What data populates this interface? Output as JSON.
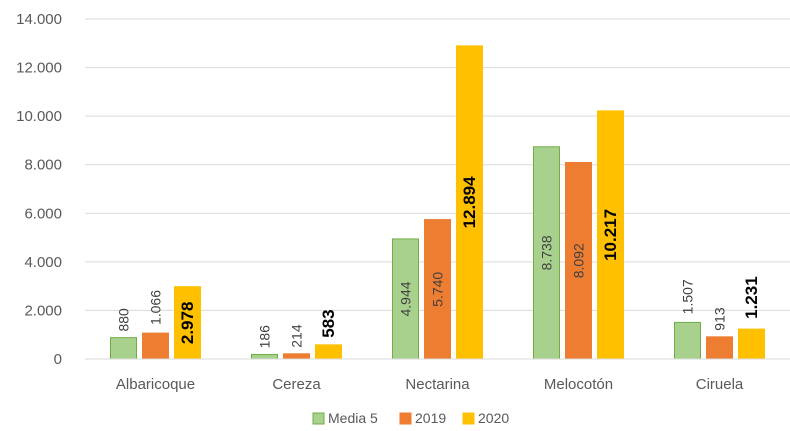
{
  "chart_data": {
    "type": "bar",
    "title": "",
    "xlabel": "",
    "ylabel": "",
    "categories": [
      "Albaricoque",
      "Cereza",
      "Nectarina",
      "Melocotón",
      "Ciruela"
    ],
    "series": [
      {
        "name": "Media 5",
        "color": "#a9d18e",
        "stroke": "#70ad47",
        "values": [
          880,
          186,
          4944,
          8738,
          1507
        ],
        "labels": [
          "880",
          "186",
          "4.944",
          "8.738",
          "1.507"
        ],
        "label_bold": false
      },
      {
        "name": "2019",
        "color": "#ed7d31",
        "stroke": "#ed7d31",
        "values": [
          1066,
          214,
          5740,
          8092,
          913
        ],
        "labels": [
          "1.066",
          "214",
          "5.740",
          "8.092",
          "913"
        ],
        "label_bold": false
      },
      {
        "name": "2020",
        "color": "#ffc000",
        "stroke": "#ffc000",
        "values": [
          2978,
          583,
          12894,
          10217,
          1231
        ],
        "labels": [
          "2.978",
          "583",
          "12.894",
          "10.217",
          "1.231"
        ],
        "label_bold": true
      }
    ],
    "ylim": [
      0,
      14000
    ],
    "yticks": [
      0,
      2000,
      4000,
      6000,
      8000,
      10000,
      12000,
      14000
    ],
    "ytick_labels": [
      "0",
      "2.000",
      "4.000",
      "6.000",
      "8.000",
      "10.000",
      "12.000",
      "14.000"
    ],
    "grid": true,
    "legend_position": "bottom"
  }
}
